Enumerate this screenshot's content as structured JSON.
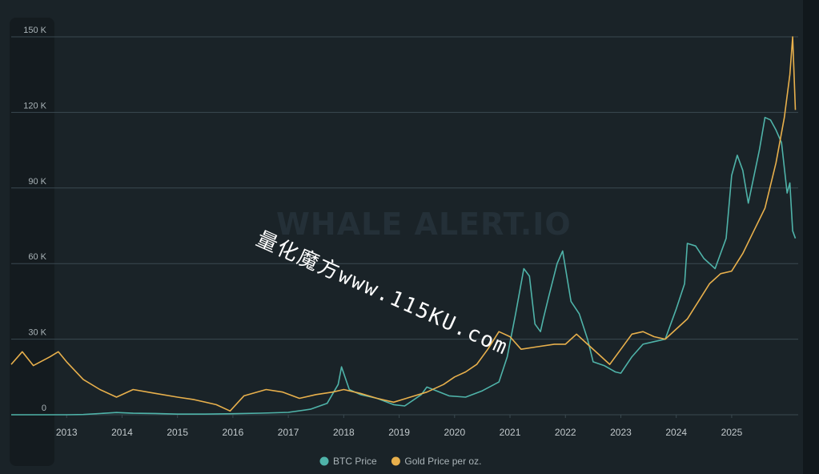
{
  "chart_data": {
    "type": "line",
    "title": "",
    "xlabel": "",
    "ylabel": "",
    "ylim": [
      0,
      150000
    ],
    "xlim": [
      2012.0,
      2026.2
    ],
    "y_ticks": [
      {
        "value": 0,
        "label": "0"
      },
      {
        "value": 30000,
        "label": "30 K"
      },
      {
        "value": 60000,
        "label": "60 K"
      },
      {
        "value": 90000,
        "label": "90 K"
      },
      {
        "value": 120000,
        "label": "120 K"
      },
      {
        "value": 150000,
        "label": "150 K"
      }
    ],
    "x_ticks": [
      "2013",
      "2014",
      "2015",
      "2016",
      "2017",
      "2018",
      "2019",
      "2020",
      "2021",
      "2022",
      "2023",
      "2024",
      "2025"
    ],
    "grid": true,
    "legend_position": "bottom",
    "series": [
      {
        "name": "BTC Price",
        "color": "#4fb3a9",
        "x": [
          2012.0,
          2012.5,
          2013.0,
          2013.3,
          2013.9,
          2014.2,
          2014.6,
          2015.0,
          2015.5,
          2016.0,
          2016.5,
          2017.0,
          2017.4,
          2017.7,
          2017.9,
          2017.96,
          2018.1,
          2018.3,
          2018.6,
          2018.9,
          2019.1,
          2019.4,
          2019.5,
          2019.9,
          2020.2,
          2020.5,
          2020.8,
          2020.95,
          2021.1,
          2021.25,
          2021.35,
          2021.45,
          2021.55,
          2021.6,
          2021.7,
          2021.85,
          2021.95,
          2022.1,
          2022.25,
          2022.4,
          2022.5,
          2022.7,
          2022.9,
          2023.0,
          2023.2,
          2023.4,
          2023.6,
          2023.8,
          2024.0,
          2024.15,
          2024.2,
          2024.35,
          2024.5,
          2024.7,
          2024.9,
          2025.0,
          2025.1,
          2025.2,
          2025.3,
          2025.5,
          2025.6,
          2025.7,
          2025.8,
          2025.9,
          2026.0,
          2026.05,
          2026.1,
          2026.15
        ],
        "values": [
          5,
          8,
          15,
          100,
          900,
          600,
          500,
          250,
          250,
          400,
          650,
          950,
          2200,
          4500,
          12000,
          19000,
          10000,
          8000,
          6500,
          4000,
          3500,
          8000,
          11000,
          7500,
          7000,
          9500,
          13000,
          23000,
          40000,
          58000,
          55000,
          36000,
          33000,
          38000,
          47000,
          60000,
          65000,
          45000,
          40000,
          30000,
          21000,
          19500,
          17000,
          16500,
          23000,
          28000,
          29000,
          30000,
          42000,
          52000,
          68000,
          67000,
          62000,
          58000,
          70000,
          95000,
          103000,
          97000,
          84000,
          105000,
          118000,
          117000,
          113000,
          108000,
          88000,
          92000,
          73000,
          70000
        ]
      },
      {
        "name": "Gold Price per oz.",
        "color": "#e8b04c",
        "x": [
          2012.0,
          2012.2,
          2012.4,
          2012.7,
          2012.85,
          2013.0,
          2013.3,
          2013.6,
          2013.9,
          2014.2,
          2014.6,
          2015.0,
          2015.3,
          2015.7,
          2015.95,
          2016.2,
          2016.6,
          2016.9,
          2017.2,
          2017.5,
          2017.8,
          2018.0,
          2018.3,
          2018.6,
          2018.9,
          2019.2,
          2019.5,
          2019.8,
          2020.0,
          2020.2,
          2020.4,
          2020.6,
          2020.8,
          2021.0,
          2021.2,
          2021.5,
          2021.8,
          2022.0,
          2022.2,
          2022.4,
          2022.6,
          2022.8,
          2023.0,
          2023.2,
          2023.4,
          2023.6,
          2023.8,
          2024.0,
          2024.2,
          2024.4,
          2024.6,
          2024.8,
          2025.0,
          2025.2,
          2025.4,
          2025.6,
          2025.8,
          2025.95,
          2026.05,
          2026.1,
          2026.15
        ],
        "values": [
          20000,
          25000,
          19500,
          23000,
          25000,
          21000,
          14000,
          10000,
          7000,
          10000,
          8500,
          7000,
          6000,
          4000,
          1500,
          7500,
          10000,
          9000,
          6500,
          8000,
          9000,
          10000,
          8500,
          6500,
          5000,
          7000,
          9000,
          12000,
          15000,
          17000,
          20000,
          26000,
          33000,
          31000,
          26000,
          27000,
          28000,
          28000,
          32000,
          28000,
          24000,
          20000,
          26000,
          32000,
          33000,
          31000,
          30000,
          34000,
          38000,
          45000,
          52000,
          56000,
          57000,
          64000,
          73000,
          82000,
          100000,
          118000,
          135000,
          150000,
          121000
        ]
      }
    ]
  },
  "watermarks": {
    "brand": "WHALE ALERT.IO",
    "overlay": "量化魔方www.115KU.com"
  }
}
